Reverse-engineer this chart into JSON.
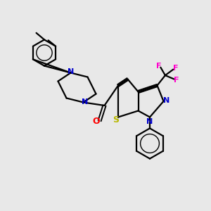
{
  "bg_color": "#e8e8e8",
  "bond_color": "#000000",
  "N_color": "#0000cc",
  "O_color": "#ff0000",
  "S_color": "#b8b800",
  "F_color": "#ff00cc",
  "line_width": 1.6,
  "fig_width": 3.0,
  "fig_height": 3.0,
  "dpi": 100,
  "xlim": [
    0,
    10
  ],
  "ylim": [
    0,
    10
  ]
}
